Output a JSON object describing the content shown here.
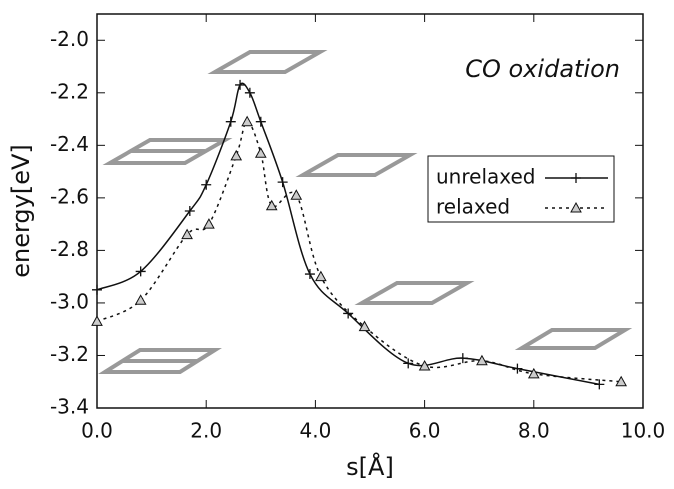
{
  "chart_data": {
    "type": "line",
    "annotation": "CO oxidation",
    "x_label": "s[Å]",
    "y_label": "energy[eV]",
    "xlim": [
      0,
      10
    ],
    "ylim": [
      -3.4,
      -1.9
    ],
    "xticks": [
      {
        "value": 0,
        "label": "0.0"
      },
      {
        "value": 2,
        "label": "2.0"
      },
      {
        "value": 4,
        "label": "4.0"
      },
      {
        "value": 6,
        "label": "6.0"
      },
      {
        "value": 8,
        "label": "8.0"
      },
      {
        "value": 10,
        "label": "10.0"
      }
    ],
    "yticks": [
      {
        "value": -3.4,
        "label": "-3.4"
      },
      {
        "value": -3.2,
        "label": "-3.2"
      },
      {
        "value": -3.0,
        "label": "-3.0"
      },
      {
        "value": -2.8,
        "label": "-2.8"
      },
      {
        "value": -2.6,
        "label": "-2.6"
      },
      {
        "value": -2.4,
        "label": "-2.4"
      },
      {
        "value": -2.2,
        "label": "-2.2"
      },
      {
        "value": -2.0,
        "label": "-2.0"
      }
    ],
    "series": [
      {
        "name": "unrelaxed",
        "color": "#111111",
        "dash": "none",
        "marker": "plus",
        "x": [
          0,
          0.8,
          1.7,
          2.0,
          2.45,
          2.62,
          2.8,
          3.0,
          3.4,
          3.9,
          4.6,
          5.7,
          6.7,
          7.7,
          9.2
        ],
        "values": [
          -2.95,
          -2.88,
          -2.65,
          -2.55,
          -2.31,
          -2.17,
          -2.2,
          -2.31,
          -2.54,
          -2.89,
          -3.04,
          -3.23,
          -3.21,
          -3.25,
          -3.31
        ]
      },
      {
        "name": "relaxed",
        "color": "#111111",
        "dash": "3,4",
        "marker": "triangle",
        "x": [
          0,
          0.8,
          1.65,
          2.05,
          2.55,
          2.75,
          3.0,
          3.2,
          3.65,
          4.1,
          4.9,
          6.0,
          7.05,
          8.0,
          9.6
        ],
        "values": [
          -3.07,
          -2.99,
          -2.74,
          -2.7,
          -2.44,
          -2.31,
          -2.43,
          -2.63,
          -2.59,
          -2.9,
          -3.09,
          -3.24,
          -3.22,
          -3.27,
          -3.3
        ]
      }
    ]
  }
}
